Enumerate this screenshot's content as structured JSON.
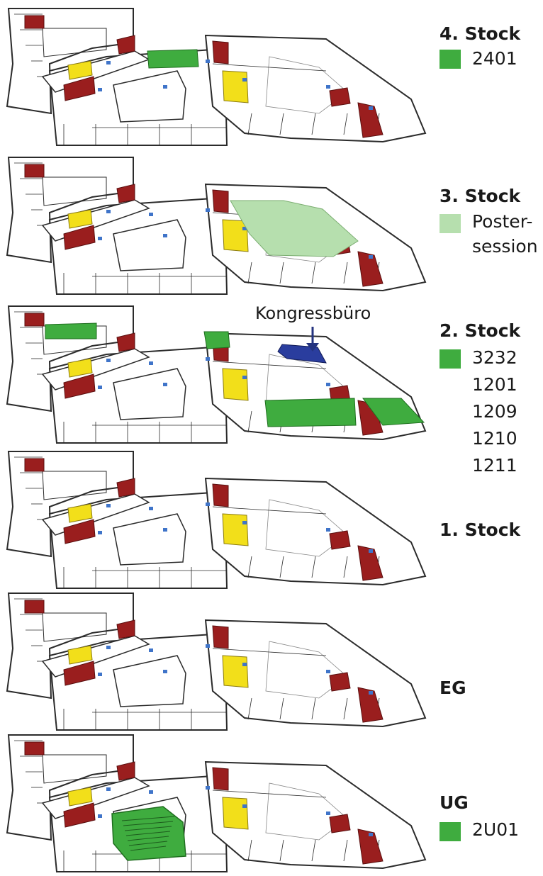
{
  "colors": {
    "room_green": "#3fac3f",
    "poster_green": "#b6dfae",
    "office_blue": "#2a3d9e",
    "arrow_blue": "#24337f",
    "wall": "#2b2b2b",
    "red_room": "#9a1e1e",
    "yellow_room": "#f2df1a"
  },
  "floors": [
    {
      "id": "stock4",
      "title": "4. Stock",
      "rooms": [
        {
          "label": "2401",
          "swatch": "room_green"
        }
      ]
    },
    {
      "id": "stock3",
      "title": "3. Stock",
      "rooms": [
        {
          "label": "Poster-",
          "swatch": "poster_green"
        },
        {
          "label": "session",
          "swatch": ""
        }
      ]
    },
    {
      "id": "stock2",
      "title": "2. Stock",
      "rooms": [
        {
          "label": "3232",
          "swatch": "room_green"
        },
        {
          "label": "1201",
          "swatch": ""
        },
        {
          "label": "1209",
          "swatch": ""
        },
        {
          "label": "1210",
          "swatch": ""
        },
        {
          "label": "1211",
          "swatch": ""
        }
      ]
    },
    {
      "id": "stock1",
      "title": "1. Stock",
      "rooms": []
    },
    {
      "id": "eg",
      "title": "EG",
      "rooms": []
    },
    {
      "id": "ug",
      "title": "UG",
      "rooms": [
        {
          "label": "2U01",
          "swatch": "room_green"
        }
      ]
    }
  ],
  "callout": {
    "label": "Kongressbüro",
    "icon": "down-arrow-icon"
  }
}
